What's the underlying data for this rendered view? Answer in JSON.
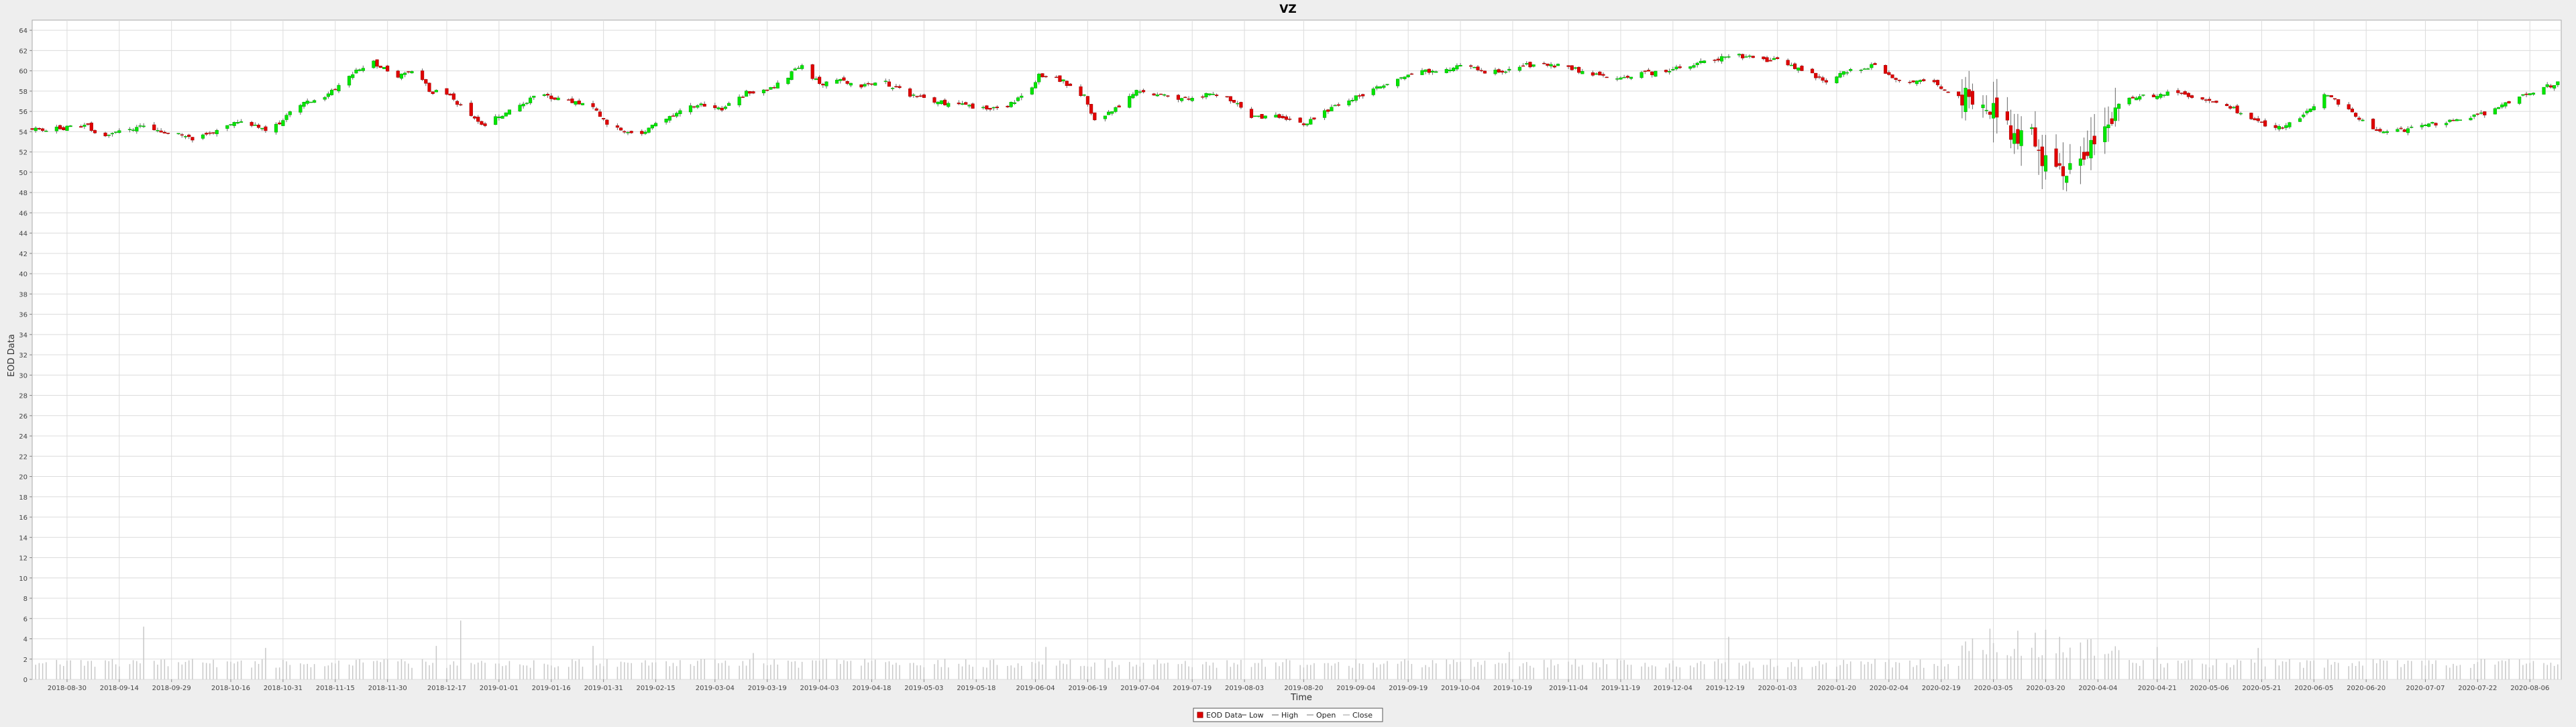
{
  "chart_data": {
    "type": "candlestick",
    "title": "VZ",
    "xlabel": "Time",
    "ylabel": "EOD Data",
    "ylim": [
      0,
      65
    ],
    "yticks": [
      0,
      2,
      4,
      6,
      8,
      10,
      12,
      14,
      16,
      18,
      20,
      22,
      24,
      26,
      28,
      30,
      32,
      34,
      36,
      38,
      40,
      42,
      44,
      46,
      48,
      50,
      52,
      54,
      56,
      58,
      60,
      62,
      64
    ],
    "xlim": [
      "2018-08-20",
      "2020-08-15"
    ],
    "xticks": [
      "2018-08-30",
      "2018-09-14",
      "2018-09-29",
      "2018-10-16",
      "2018-10-31",
      "2018-11-15",
      "2018-11-30",
      "2018-12-17",
      "2019-01-01",
      "2019-01-16",
      "2019-01-31",
      "2019-02-15",
      "2019-03-04",
      "2019-03-19",
      "2019-04-03",
      "2019-04-18",
      "2019-05-03",
      "2019-05-18",
      "2019-06-04",
      "2019-06-19",
      "2019-07-04",
      "2019-07-19",
      "2019-08-03",
      "2019-08-20",
      "2019-09-04",
      "2019-09-19",
      "2019-10-04",
      "2019-10-19",
      "2019-11-04",
      "2019-11-19",
      "2019-12-04",
      "2019-12-19",
      "2020-01-03",
      "2020-01-20",
      "2020-02-04",
      "2020-02-19",
      "2020-03-05",
      "2020-03-20",
      "2020-04-04",
      "2020-04-21",
      "2020-05-06",
      "2020-05-21",
      "2020-06-05",
      "2020-06-20",
      "2020-07-07",
      "2020-07-22",
      "2020-08-06"
    ],
    "grid": true,
    "legend": {
      "placement": "bottom-center",
      "entries": [
        "EOD Data",
        "Low",
        "High",
        "Open",
        "Close"
      ]
    },
    "colors": {
      "up": "#00e600",
      "down": "#e00000",
      "wick": "#666666",
      "volume": "#c8c8c8",
      "grid": "#dcdcdc",
      "plot_bg": "#ffffff",
      "page_bg": "#eeeeee"
    },
    "close_anchors": [
      [
        "2018-08-20",
        54.2
      ],
      [
        "2018-09-05",
        54.5
      ],
      [
        "2018-09-10",
        53.5
      ],
      [
        "2018-09-20",
        54.6
      ],
      [
        "2018-09-28",
        53.9
      ],
      [
        "2018-10-05",
        53.3
      ],
      [
        "2018-10-20",
        55.1
      ],
      [
        "2018-10-27",
        54.0
      ],
      [
        "2018-11-05",
        56.7
      ],
      [
        "2018-11-12",
        57.5
      ],
      [
        "2018-11-25",
        61.0
      ],
      [
        "2018-12-03",
        59.5
      ],
      [
        "2018-12-08",
        60.2
      ],
      [
        "2018-12-12",
        58.0
      ],
      [
        "2018-12-18",
        57.8
      ],
      [
        "2018-12-22",
        56.0
      ],
      [
        "2018-12-27",
        54.6
      ],
      [
        "2019-01-05",
        56.3
      ],
      [
        "2019-01-12",
        57.6
      ],
      [
        "2019-01-22",
        57.0
      ],
      [
        "2019-01-28",
        56.3
      ],
      [
        "2019-02-02",
        54.5
      ],
      [
        "2019-02-10",
        53.8
      ],
      [
        "2019-02-18",
        55.2
      ],
      [
        "2019-02-27",
        56.8
      ],
      [
        "2019-03-06",
        56.2
      ],
      [
        "2019-03-13",
        57.8
      ],
      [
        "2019-03-20",
        58.2
      ],
      [
        "2019-03-29",
        60.5
      ],
      [
        "2019-04-03",
        58.7
      ],
      [
        "2019-04-08",
        59.2
      ],
      [
        "2019-04-15",
        58.6
      ],
      [
        "2019-04-22",
        58.8
      ],
      [
        "2019-04-30",
        57.5
      ],
      [
        "2019-05-09",
        56.8
      ],
      [
        "2019-05-16",
        56.5
      ],
      [
        "2019-05-25",
        56.3
      ],
      [
        "2019-06-01",
        57.5
      ],
      [
        "2019-06-05",
        59.5
      ],
      [
        "2019-06-12",
        59.0
      ],
      [
        "2019-06-18",
        57.5
      ],
      [
        "2019-06-21",
        55.0
      ],
      [
        "2019-06-28",
        56.5
      ],
      [
        "2019-07-03",
        58.2
      ],
      [
        "2019-07-10",
        57.5
      ],
      [
        "2019-07-17",
        57.3
      ],
      [
        "2019-07-25",
        57.8
      ],
      [
        "2019-07-31",
        57.0
      ],
      [
        "2019-08-05",
        55.3
      ],
      [
        "2019-08-12",
        55.6
      ],
      [
        "2019-08-20",
        54.8
      ],
      [
        "2019-08-25",
        55.7
      ],
      [
        "2019-09-01",
        57.0
      ],
      [
        "2019-09-08",
        58.0
      ],
      [
        "2019-09-15",
        58.8
      ],
      [
        "2019-09-22",
        60.0
      ],
      [
        "2019-09-29",
        59.8
      ],
      [
        "2019-10-05",
        60.6
      ],
      [
        "2019-10-12",
        59.7
      ],
      [
        "2019-10-19",
        60.3
      ],
      [
        "2019-10-26",
        60.7
      ],
      [
        "2019-11-02",
        60.5
      ],
      [
        "2019-11-09",
        59.8
      ],
      [
        "2019-11-16",
        59.2
      ],
      [
        "2019-11-23",
        59.6
      ],
      [
        "2019-11-30",
        59.9
      ],
      [
        "2019-12-07",
        60.3
      ],
      [
        "2019-12-14",
        61.0
      ],
      [
        "2019-12-21",
        61.6
      ],
      [
        "2019-12-28",
        61.2
      ],
      [
        "2020-01-04",
        61.0
      ],
      [
        "2020-01-10",
        60.0
      ],
      [
        "2020-01-17",
        59.0
      ],
      [
        "2020-01-24",
        60.0
      ],
      [
        "2020-01-31",
        60.5
      ],
      [
        "2020-02-07",
        59.0
      ],
      [
        "2020-02-14",
        59.2
      ],
      [
        "2020-02-21",
        58.0
      ],
      [
        "2020-02-28",
        57.2
      ],
      [
        "2020-03-05",
        56.0
      ],
      [
        "2020-03-08",
        55.0
      ],
      [
        "2020-03-11",
        53.0
      ],
      [
        "2020-03-15",
        55.5
      ],
      [
        "2020-03-18",
        52.0
      ],
      [
        "2020-03-22",
        49.5
      ],
      [
        "2020-03-26",
        50.5
      ],
      [
        "2020-04-02",
        52.8
      ],
      [
        "2020-04-08",
        55.5
      ],
      [
        "2020-04-13",
        57.5
      ],
      [
        "2020-04-20",
        57.6
      ],
      [
        "2020-04-27",
        58.0
      ],
      [
        "2020-05-04",
        57.2
      ],
      [
        "2020-05-11",
        56.6
      ],
      [
        "2020-05-18",
        55.3
      ],
      [
        "2020-05-25",
        54.2
      ],
      [
        "2020-06-01",
        55.2
      ],
      [
        "2020-06-08",
        57.6
      ],
      [
        "2020-06-15",
        56.2
      ],
      [
        "2020-06-22",
        54.3
      ],
      [
        "2020-06-28",
        54.0
      ],
      [
        "2020-07-05",
        54.5
      ],
      [
        "2020-07-12",
        54.9
      ],
      [
        "2020-07-19",
        55.3
      ],
      [
        "2020-07-26",
        56.0
      ],
      [
        "2020-08-02",
        57.2
      ],
      [
        "2020-08-09",
        58.2
      ],
      [
        "2020-08-15",
        59.0
      ]
    ],
    "volume_baseline": 1.4,
    "volume_spikes": [
      [
        "2018-09-21",
        5.2
      ],
      [
        "2018-10-26",
        3.1
      ],
      [
        "2018-11-18",
        2.8
      ],
      [
        "2018-12-14",
        3.3
      ],
      [
        "2018-12-21",
        5.8
      ],
      [
        "2019-01-28",
        3.3
      ],
      [
        "2019-03-15",
        2.6
      ],
      [
        "2019-06-07",
        3.2
      ],
      [
        "2019-10-18",
        2.7
      ],
      [
        "2019-12-20",
        4.2
      ],
      [
        "2020-03-04",
        5.0
      ],
      [
        "2020-03-12",
        4.8
      ],
      [
        "2020-03-17",
        4.6
      ],
      [
        "2020-03-20",
        4.9
      ],
      [
        "2020-03-24",
        4.2
      ],
      [
        "2020-04-21",
        3.2
      ],
      [
        "2020-05-20",
        3.1
      ]
    ]
  }
}
